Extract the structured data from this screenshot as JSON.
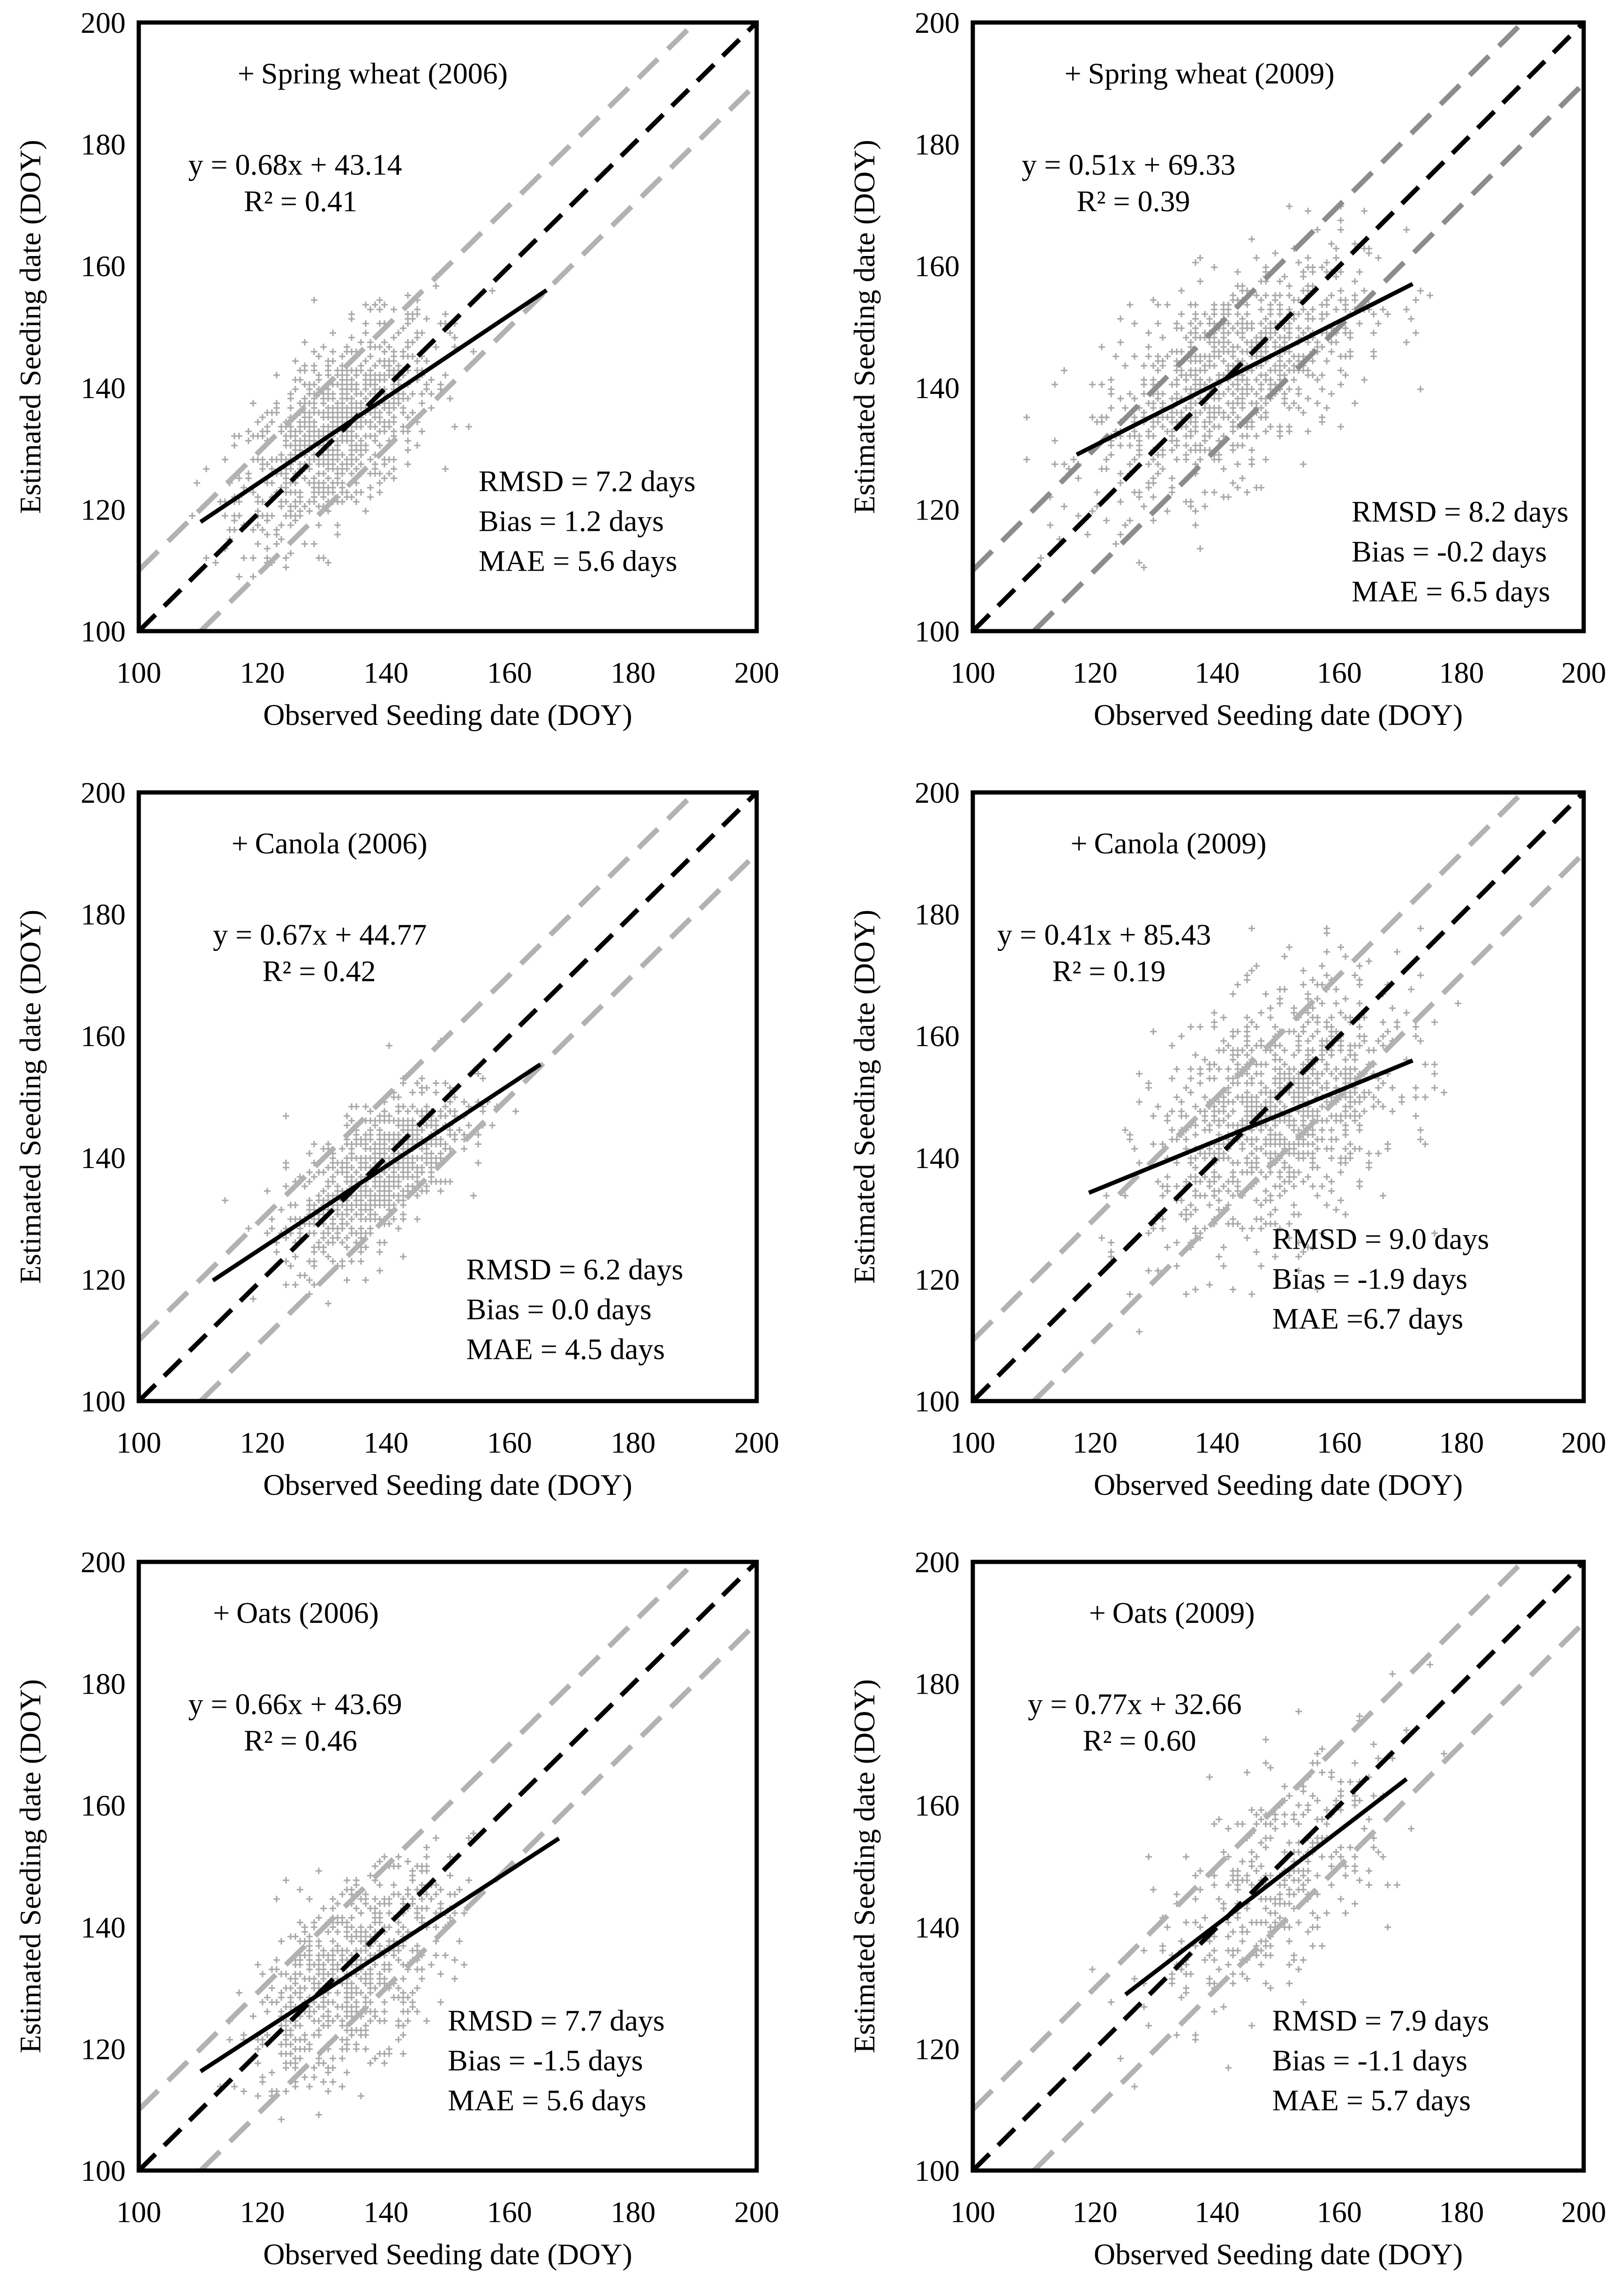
{
  "charts": [
    {
      "type": "scatter",
      "legend": "Spring wheat (2006)",
      "x_label": "Observed Seeding date (DOY)",
      "y_label": "Estimated  Seeding date (DOY)",
      "x_range": [
        100,
        200
      ],
      "y_range": [
        100,
        200
      ],
      "x_ticks": [
        100,
        120,
        140,
        160,
        180,
        200
      ],
      "y_ticks": [
        100,
        120,
        140,
        160,
        180,
        200
      ],
      "equation": "y = 0.68x + 43.14",
      "r_squared": "R² = 0.41",
      "stats": [
        "RMSD = 7.2 days",
        "Bias =  1.2 days",
        "MAE = 5.6 days"
      ],
      "fit": {
        "slope": 0.68,
        "intercept": 43.14,
        "x_start": 110,
        "x_end": 166
      },
      "one_to_one_offset_days": 10,
      "cloud": {
        "x_center": 132,
        "y_center": 133,
        "x_spread": 8,
        "y_spread": 8,
        "count": 900
      }
    },
    {
      "type": "scatter",
      "legend": "Spring wheat (2009)",
      "x_label": "Observed Seeding date (DOY)",
      "y_label": "Estimated Seeding date (DOY)",
      "x_range": [
        100,
        200
      ],
      "y_range": [
        100,
        200
      ],
      "x_ticks": [
        100,
        120,
        140,
        160,
        180,
        200
      ],
      "y_ticks": [
        100,
        120,
        140,
        160,
        180,
        200
      ],
      "equation": "y = 0.51x + 69.33",
      "r_squared": "R² = 0.39",
      "stats": [
        "RMSD = 8.2 days",
        "Bias =  -0.2 days",
        "MAE = 6.5 days"
      ],
      "fit": {
        "slope": 0.51,
        "intercept": 69.33,
        "x_start": 117,
        "x_end": 172
      },
      "one_to_one_offset_days": 10,
      "cloud": {
        "x_center": 142,
        "y_center": 142,
        "x_spread": 11,
        "y_spread": 9,
        "count": 900
      }
    },
    {
      "type": "scatter",
      "legend": "Canola (2006)",
      "x_label": "Observed Seeding date (DOY)",
      "y_label": "Estimated  Seeding date (DOY)",
      "x_range": [
        100,
        200
      ],
      "y_range": [
        100,
        200
      ],
      "x_ticks": [
        100,
        120,
        140,
        160,
        180,
        200
      ],
      "y_ticks": [
        100,
        120,
        140,
        160,
        180,
        200
      ],
      "equation": "y = 0.67x + 44.77",
      "r_squared": "R² = 0.42",
      "stats": [
        "RMSD = 6.2 days",
        "Bias =  0.0 days",
        "MAE = 4.5 days"
      ],
      "fit": {
        "slope": 0.67,
        "intercept": 44.77,
        "x_start": 112,
        "x_end": 165
      },
      "one_to_one_offset_days": 10,
      "cloud": {
        "x_center": 138,
        "y_center": 137,
        "x_spread": 7,
        "y_spread": 6,
        "count": 800
      }
    },
    {
      "type": "scatter",
      "legend": "Canola (2009)",
      "x_label": "Observed Seeding date (DOY)",
      "y_label": "Estimated Seeding date (DOY)",
      "x_range": [
        100,
        200
      ],
      "y_range": [
        100,
        200
      ],
      "x_ticks": [
        100,
        120,
        140,
        160,
        180,
        200
      ],
      "y_ticks": [
        100,
        120,
        140,
        160,
        180,
        200
      ],
      "equation": "y = 0.41x + 85.43",
      "r_squared": "R² = 0.19",
      "stats": [
        "RMSD = 9.0 days",
        "Bias = -1.9 days",
        "MAE =6.7 days"
      ],
      "fit": {
        "slope": 0.41,
        "intercept": 85.43,
        "x_start": 119,
        "x_end": 172
      },
      "one_to_one_offset_days": 10,
      "cloud": {
        "x_center": 150,
        "y_center": 146,
        "x_spread": 10,
        "y_spread": 11,
        "count": 1000
      }
    },
    {
      "type": "scatter",
      "legend": "Oats (2006)",
      "x_label": "Observed Seeding date (DOY)",
      "y_label": "Estimated  Seeding date (DOY)",
      "x_range": [
        100,
        200
      ],
      "y_range": [
        100,
        200
      ],
      "x_ticks": [
        100,
        120,
        140,
        160,
        180,
        200
      ],
      "y_ticks": [
        100,
        120,
        140,
        160,
        180,
        200
      ],
      "equation": "y = 0.66x + 43.69",
      "r_squared": "R² = 0.46",
      "stats": [
        "RMSD = 7.7 days",
        "Bias =  -1.5 days",
        "MAE = 5.6 days"
      ],
      "fit": {
        "slope": 0.66,
        "intercept": 43.69,
        "x_start": 110,
        "x_end": 168
      },
      "one_to_one_offset_days": 10,
      "cloud": {
        "x_center": 134,
        "y_center": 132,
        "x_spread": 8,
        "y_spread": 8,
        "count": 700
      }
    },
    {
      "type": "scatter",
      "legend": "Oats (2009)",
      "x_label": "Observed Seeding date (DOY)",
      "y_label": "Estimated  Seeding date (DOY)",
      "x_range": [
        100,
        200
      ],
      "y_range": [
        100,
        200
      ],
      "x_ticks": [
        100,
        120,
        140,
        160,
        180,
        200
      ],
      "y_ticks": [
        100,
        120,
        140,
        160,
        180,
        200
      ],
      "equation": "y = 0.77x + 32.66",
      "r_squared": "R² = 0.60",
      "stats": [
        "RMSD = 7.9 days",
        "Bias =  -1.1 days",
        "MAE = 5.7 days"
      ],
      "fit": {
        "slope": 0.77,
        "intercept": 32.66,
        "x_start": 125,
        "x_end": 171
      },
      "one_to_one_offset_days": 10,
      "cloud": {
        "x_center": 150,
        "y_center": 148,
        "x_spread": 10,
        "y_spread": 10,
        "count": 350
      }
    }
  ],
  "colors": {
    "points": "#a6a6a6",
    "fit_line": "#000000",
    "one_to_one": "#000000",
    "band_light": "#b2b2b2",
    "band_dark": "#8c8c8c",
    "frame": "#000000"
  }
}
